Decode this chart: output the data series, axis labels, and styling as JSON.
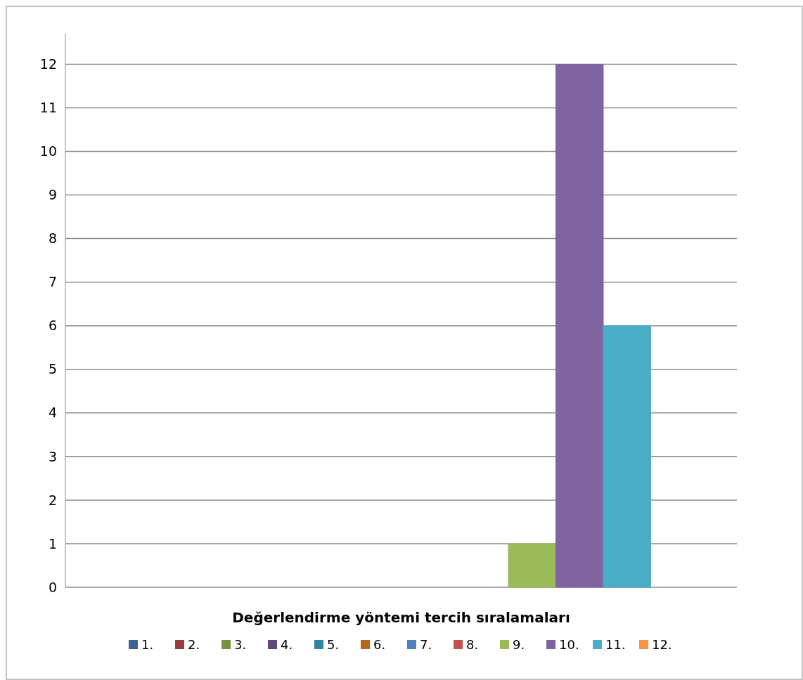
{
  "chart_data": {
    "type": "bar",
    "xlabel": "Değerlendirme yöntemi tercih sıralamaları",
    "categories": [
      null
    ],
    "series": [
      {
        "name": "1.",
        "color": "#3c6496",
        "values": [
          0
        ]
      },
      {
        "name": "2.",
        "color": "#963c3a",
        "values": [
          0
        ]
      },
      {
        "name": "3.",
        "color": "#77933c",
        "values": [
          0
        ]
      },
      {
        "name": "4.",
        "color": "#604a7b",
        "values": [
          0
        ]
      },
      {
        "name": "5.",
        "color": "#31859c",
        "values": [
          0
        ]
      },
      {
        "name": "6.",
        "color": "#b8651f",
        "values": [
          0
        ]
      },
      {
        "name": "7.",
        "color": "#4f81bd",
        "values": [
          0
        ]
      },
      {
        "name": "8.",
        "color": "#c0504d",
        "values": [
          0
        ]
      },
      {
        "name": "9.",
        "color": "#9bbb59",
        "values": [
          1
        ]
      },
      {
        "name": "10.",
        "color": "#8064a2",
        "values": [
          12
        ]
      },
      {
        "name": "11.",
        "color": "#4bacc6",
        "values": [
          6
        ]
      },
      {
        "name": "12.",
        "color": "#f79646",
        "values": [
          0
        ]
      }
    ],
    "ylim": [
      0,
      12.7
    ],
    "yticks": [
      0,
      1,
      2,
      3,
      4,
      5,
      6,
      7,
      8,
      9,
      10,
      11,
      12
    ],
    "grid": "y",
    "legend": "bottom"
  }
}
